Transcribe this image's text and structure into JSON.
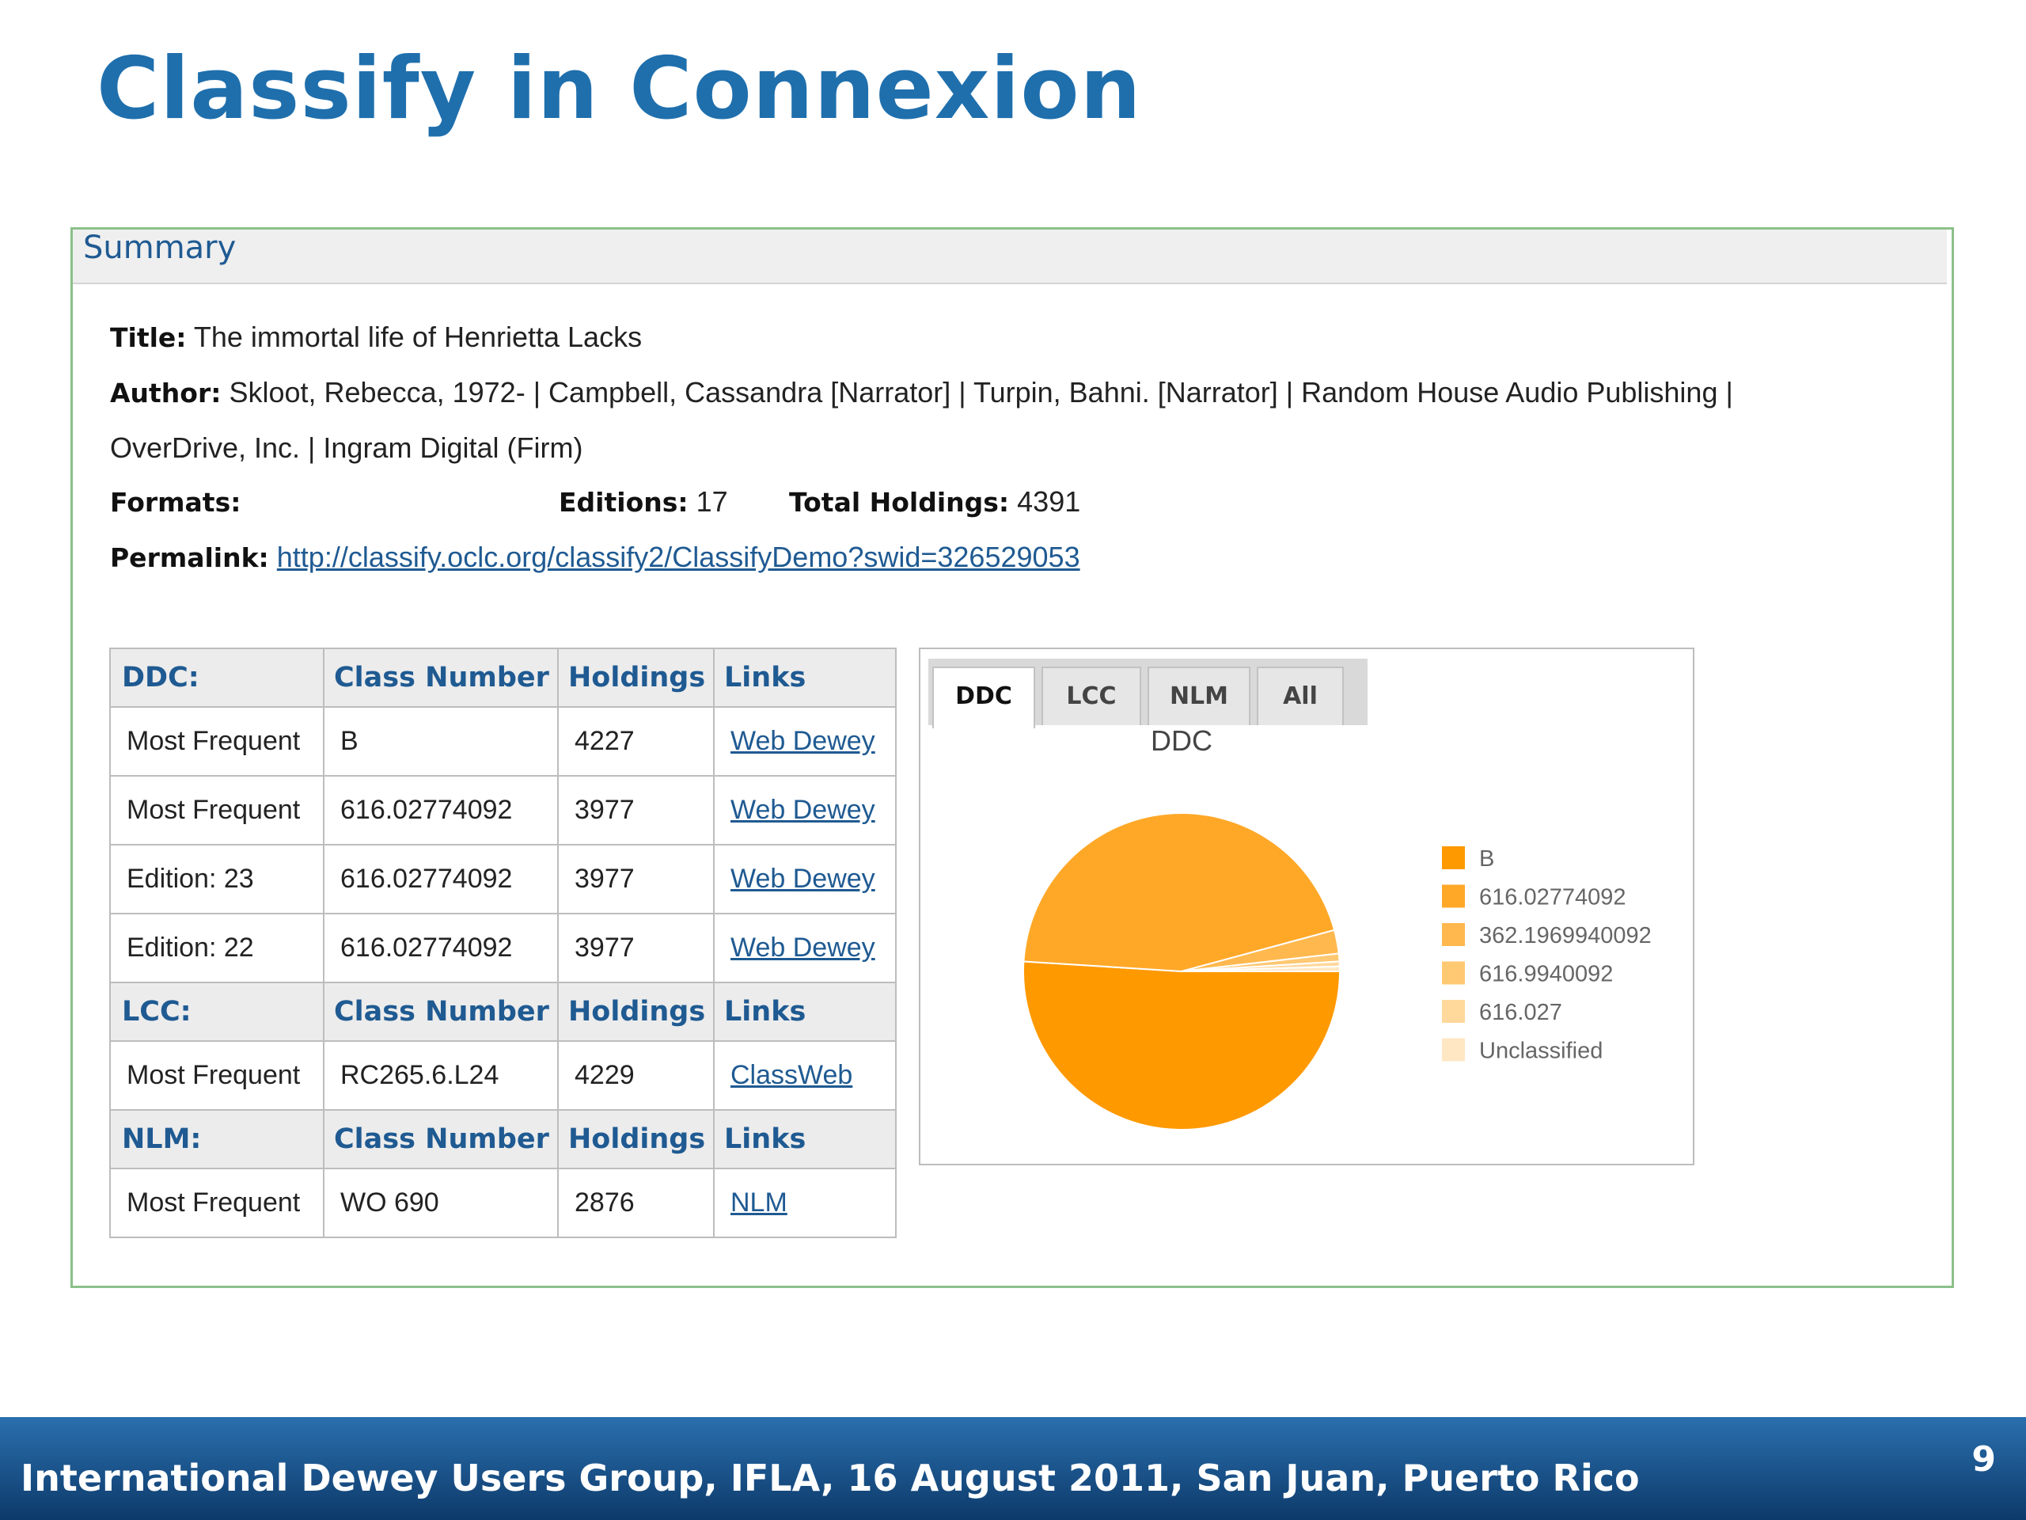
{
  "slide": {
    "title": "Classify in Connexion",
    "footer": "International Dewey Users Group, IFLA, 16 August 2011, San Juan, Puerto Rico",
    "page_number": "9"
  },
  "summary": {
    "header": "Summary",
    "title_label": "Title:",
    "title_value": "The immortal life of Henrietta Lacks",
    "author_label": "Author:",
    "author_line1": "Skloot, Rebecca, 1972- | Campbell, Cassandra [Narrator] | Turpin, Bahni. [Narrator] | Random House Audio Publishing |",
    "author_line2": "OverDrive, Inc. | Ingram Digital (Firm)",
    "formats_label": "Formats:",
    "formats_value": "",
    "editions_label": "Editions:",
    "editions_value": "17",
    "holdings_label": "Total Holdings:",
    "holdings_value": "4391",
    "permalink_label": "Permalink:",
    "permalink_url": "http://classify.oclc.org/classify2/ClassifyDemo?swid=326529053"
  },
  "table": {
    "ddc_header": [
      "DDC:",
      "Class Number",
      "Holdings",
      "Links"
    ],
    "ddc_rows": [
      [
        "Most Frequent",
        "B",
        "4227",
        "Web Dewey"
      ],
      [
        "Most Frequent",
        "616.02774092",
        "3977",
        "Web Dewey"
      ],
      [
        "Edition: 23",
        "616.02774092",
        "3977",
        "Web Dewey"
      ],
      [
        "Edition: 22",
        "616.02774092",
        "3977",
        "Web Dewey"
      ]
    ],
    "lcc_header": [
      "LCC:",
      "Class Number",
      "Holdings",
      "Links"
    ],
    "lcc_rows": [
      [
        "Most Frequent",
        "RC265.6.L24",
        "4229",
        "ClassWeb"
      ]
    ],
    "nlm_header": [
      "NLM:",
      "Class Number",
      "Holdings",
      "Links"
    ],
    "nlm_rows": [
      [
        "Most Frequent",
        "WO 690",
        "2876",
        "NLM"
      ]
    ]
  },
  "chart_tabs": [
    "DDC",
    "LCC",
    "NLM",
    "All"
  ],
  "chart_data": {
    "type": "pie",
    "title": "DDC",
    "labels": [
      "B",
      "616.02774092",
      "362.1969940092",
      "616.9940092",
      "616.027",
      "Unclassified"
    ],
    "values": [
      51.0,
      44.8,
      2.4,
      0.8,
      0.5,
      0.5
    ],
    "colors": [
      "#ff9900",
      "#ffa828",
      "#ffb84e",
      "#ffc873",
      "#ffd89c",
      "#ffe7c4"
    ],
    "legend": "right"
  }
}
